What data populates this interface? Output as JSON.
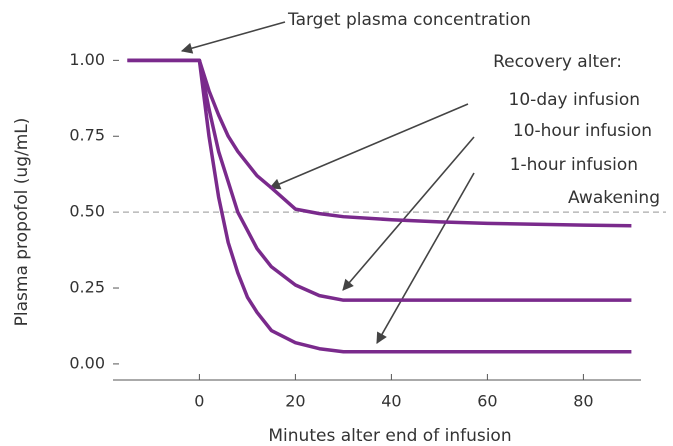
{
  "chart_data": {
    "type": "line",
    "x_label": "Minutes alter end of infusion",
    "y_label": "Plasma propofol (ug/mL)",
    "x": [
      -15,
      0,
      2,
      4,
      6,
      8,
      10,
      12,
      15,
      20,
      25,
      30,
      40,
      50,
      60,
      70,
      80,
      90
    ],
    "series": [
      {
        "name": "10-day infusion",
        "color": "#7a2a8c",
        "values": [
          1.0,
          1.0,
          0.9,
          0.82,
          0.75,
          0.7,
          0.66,
          0.62,
          0.58,
          0.51,
          0.495,
          0.485,
          0.475,
          0.468,
          0.463,
          0.46,
          0.457,
          0.455
        ]
      },
      {
        "name": "10-hour infusion",
        "color": "#7a2a8c",
        "values": [
          1.0,
          1.0,
          0.84,
          0.7,
          0.6,
          0.5,
          0.44,
          0.38,
          0.32,
          0.26,
          0.225,
          0.21,
          0.21,
          0.21,
          0.21,
          0.21,
          0.21,
          0.21
        ]
      },
      {
        "name": "1-hour infusion",
        "color": "#7a2a8c",
        "values": [
          1.0,
          1.0,
          0.75,
          0.55,
          0.4,
          0.3,
          0.22,
          0.17,
          0.11,
          0.07,
          0.05,
          0.04,
          0.04,
          0.04,
          0.04,
          0.04,
          0.04,
          0.04
        ]
      }
    ],
    "xlim": [
      -18,
      92
    ],
    "ylim": [
      -0.053,
      1.1
    ],
    "xticks": [
      0,
      20,
      40,
      60,
      80
    ],
    "yticks": [
      {
        "value": 0,
        "label": "0.00"
      },
      {
        "value": 0.25,
        "label": "0.25"
      },
      {
        "value": 0.5,
        "label": "0.50"
      },
      {
        "value": 0.75,
        "label": "0.75"
      },
      {
        "value": 1,
        "label": "1.00"
      }
    ],
    "reference_line": {
      "value": 0.5,
      "label": "Awakening",
      "color": "#aaaaaa"
    },
    "annotations": [
      "Target plasma concentration",
      "Recovery alter:"
    ]
  }
}
